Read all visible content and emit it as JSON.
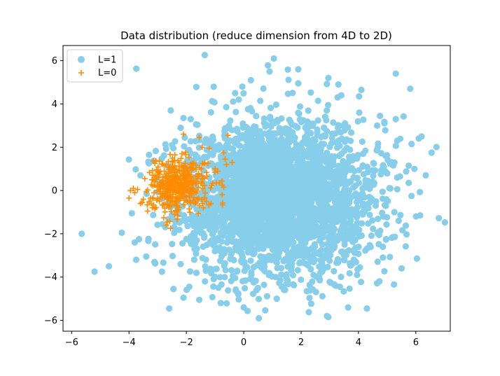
{
  "chart_data": {
    "type": "scatter",
    "title": "Data distribution (reduce dimension from 4D to 2D)",
    "xlabel": "",
    "ylabel": "",
    "xlim": [
      -6.3,
      7.2
    ],
    "ylim": [
      -6.5,
      6.7
    ],
    "xticks": [
      -6,
      -4,
      -2,
      0,
      2,
      4,
      6
    ],
    "yticks": [
      -6,
      -4,
      -2,
      0,
      2,
      4,
      6
    ],
    "xtick_labels": [
      "−6",
      "−4",
      "−2",
      "0",
      "2",
      "4",
      "6"
    ],
    "ytick_labels": [
      "−6",
      "−4",
      "−2",
      "0",
      "2",
      "4",
      "6"
    ],
    "grid": false,
    "legend_position": "top-left",
    "series": [
      {
        "name": "L=1",
        "marker": "circle",
        "color": "#87CEEB",
        "generated_cloud": {
          "count": 3200,
          "mean_x": 1.2,
          "mean_y": -0.3,
          "sd_x": 1.6,
          "sd_y": 1.75,
          "seed": 11
        },
        "points": [
          [
            1.05,
            6.1
          ],
          [
            1.9,
            5.6
          ],
          [
            5.3,
            5.4
          ],
          [
            0.9,
            5.5
          ],
          [
            2.95,
            5.2
          ],
          [
            0.25,
            5.1
          ],
          [
            3.3,
            4.9
          ],
          [
            1.9,
            4.95
          ],
          [
            -0.05,
            4.8
          ],
          [
            -0.3,
            4.5
          ],
          [
            4.1,
            4.65
          ],
          [
            3.4,
            4.4
          ],
          [
            -1.85,
            3.3
          ],
          [
            -2.1,
            3.35
          ],
          [
            -2.2,
            2.9
          ],
          [
            -2.5,
            2.1
          ],
          [
            -3.3,
            1.65
          ],
          [
            -3.6,
            0.7
          ],
          [
            -3.9,
            -1.05
          ],
          [
            -5.65,
            -2.0
          ],
          [
            -5.2,
            -3.75
          ],
          [
            -4.7,
            -3.5
          ],
          [
            -4.25,
            -1.95
          ],
          [
            -3.8,
            -2.4
          ],
          [
            -3.65,
            -2.25
          ],
          [
            -3.75,
            -3.2
          ],
          [
            -3.4,
            -3.05
          ],
          [
            -2.6,
            -5.45
          ],
          [
            -2.1,
            -4.95
          ],
          [
            -1.55,
            -5.05
          ],
          [
            -0.8,
            -5.2
          ],
          [
            0.0,
            -5.4
          ],
          [
            1.15,
            -5.0
          ],
          [
            0.45,
            -4.6
          ],
          [
            2.9,
            -5.8
          ],
          [
            2.95,
            -5.85
          ],
          [
            3.35,
            -4.45
          ],
          [
            3.95,
            -3.9
          ],
          [
            4.05,
            -3.55
          ],
          [
            4.85,
            -3.1
          ],
          [
            4.85,
            -2.6
          ],
          [
            5.25,
            -1.0
          ],
          [
            5.4,
            -1.4
          ],
          [
            6.15,
            -1.15
          ],
          [
            5.85,
            -0.25
          ],
          [
            5.75,
            0.35
          ],
          [
            5.95,
            1.0
          ],
          [
            5.75,
            1.15
          ],
          [
            5.35,
            0.6
          ],
          [
            5.85,
            2.15
          ],
          [
            6.1,
            2.4
          ],
          [
            6.2,
            2.5
          ],
          [
            6.55,
            1.75
          ],
          [
            5.35,
            2.3
          ],
          [
            5.3,
            3.3
          ],
          [
            4.75,
            3.45
          ],
          [
            4.65,
            3.0
          ],
          [
            -2.85,
            -3.75
          ],
          [
            -2.45,
            -4.55
          ],
          [
            -1.9,
            -4.45
          ],
          [
            -1.35,
            -4.2
          ],
          [
            2.2,
            -4.65
          ],
          [
            2.65,
            -4.15
          ]
        ]
      },
      {
        "name": "L=0",
        "marker": "plus",
        "color": "#FF8C00",
        "generated_cloud": {
          "count": 420,
          "mean_x": -2.3,
          "mean_y": 0.25,
          "sd_x": 0.5,
          "sd_y": 0.6,
          "seed": 7
        },
        "points": [
          [
            -4.0,
            -0.35
          ],
          [
            -3.95,
            0.0
          ],
          [
            -3.85,
            0.1
          ],
          [
            -3.7,
            0.05
          ],
          [
            -3.6,
            -0.6
          ],
          [
            -3.5,
            -0.4
          ],
          [
            -3.35,
            -0.95
          ],
          [
            -3.45,
            0.55
          ],
          [
            -3.2,
            0.5
          ],
          [
            -3.1,
            -0.85
          ],
          [
            -2.95,
            0.85
          ],
          [
            -2.7,
            -1.6
          ],
          [
            -2.55,
            -1.75
          ],
          [
            -2.4,
            1.65
          ],
          [
            -2.15,
            1.7
          ],
          [
            -2.1,
            2.6
          ],
          [
            -1.55,
            2.45
          ],
          [
            -1.2,
            1.95
          ],
          [
            -1.45,
            2.0
          ],
          [
            -0.7,
            1.75
          ],
          [
            -0.6,
            1.2
          ],
          [
            -0.55,
            2.55
          ],
          [
            -0.65,
            1.45
          ],
          [
            -0.9,
            0.9
          ],
          [
            -0.85,
            0.35
          ],
          [
            -1.0,
            1.0
          ],
          [
            -1.3,
            -0.5
          ],
          [
            -1.9,
            -0.85
          ],
          [
            -1.55,
            -0.7
          ],
          [
            -2.3,
            -1.15
          ],
          [
            -1.85,
            -0.55
          ],
          [
            -0.7,
            0.15
          ],
          [
            -0.75,
            0.25
          ],
          [
            -0.4,
            1.3
          ]
        ]
      }
    ]
  }
}
